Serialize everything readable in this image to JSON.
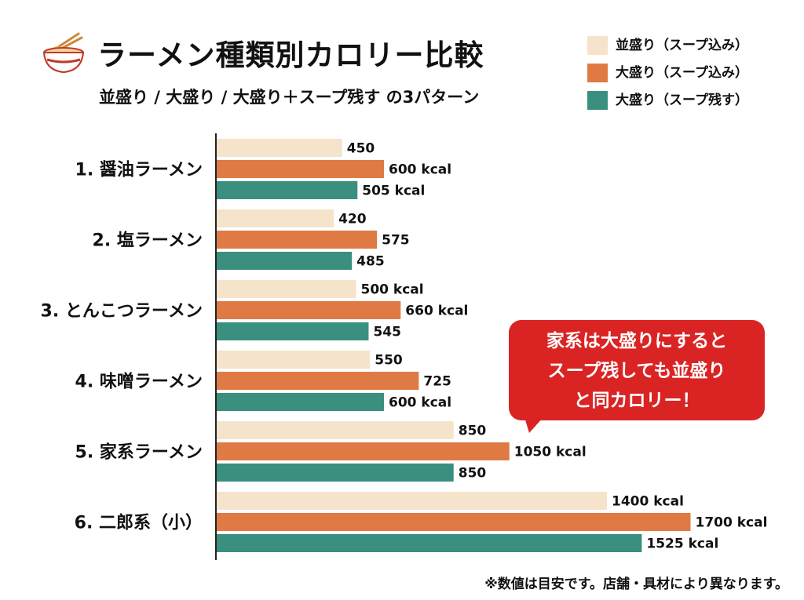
{
  "title": "ラーメン種類別カロリー比較",
  "subtitle": "並盛り / 大盛り / 大盛り＋スープ残す の3パターン",
  "icon": "ramen-bowl-icon",
  "chart_data": {
    "type": "bar",
    "orientation": "horizontal",
    "title": "ラーメン種類別カロリー比較",
    "subtitle": "並盛り / 大盛り / 大盛り＋スープ残す の3パターン",
    "xlabel": "",
    "ylabel": "",
    "xlim": [
      0,
      1900
    ],
    "grid": false,
    "legend_position": "top-right",
    "categories": [
      "1. 醤油ラーメン",
      "2. 塩ラーメン",
      "3. とんこつラーメン",
      "4. 味噌ラーメン",
      "5. 家系ラーメン",
      "6. 二郎系（小）"
    ],
    "series": [
      {
        "name": "並盛り（スープ込み）",
        "color": "#f5e3cc",
        "values": [
          450,
          420,
          500,
          550,
          850,
          1400
        ],
        "labels": [
          "450",
          "420",
          "500 kcal",
          "550",
          "850",
          "1400 kcal"
        ]
      },
      {
        "name": "大盛り（スープ込み）",
        "color": "#e07a45",
        "values": [
          600,
          575,
          660,
          725,
          1050,
          1700
        ],
        "labels": [
          "600 kcal",
          "575",
          "660 kcal",
          "725",
          "1050 kcal",
          "1700 kcal"
        ]
      },
      {
        "name": "大盛り（スープ残す）",
        "color": "#3a8f7e",
        "values": [
          505,
          485,
          545,
          600,
          850,
          1525
        ],
        "labels": [
          "505 kcal",
          "485",
          "545",
          "600 kcal",
          "850",
          "1525 kcal"
        ]
      }
    ]
  },
  "callout": {
    "lines": [
      "家系は大盛りにすると",
      "スープ残しても並盛り",
      "と同カロリー！"
    ]
  },
  "footnote": "※数値は目安です。店舗・具材により異なります。"
}
